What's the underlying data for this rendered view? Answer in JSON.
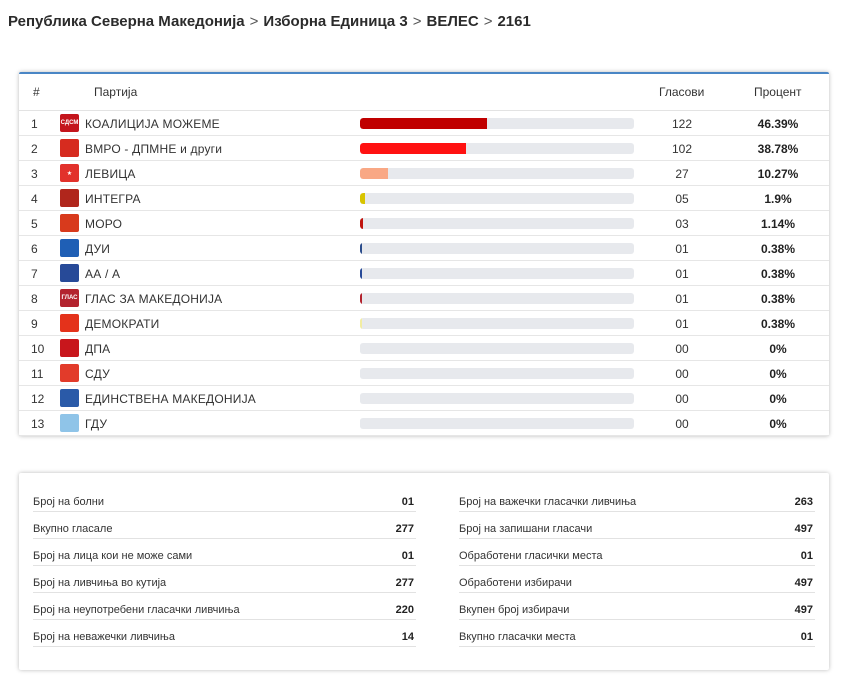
{
  "breadcrumb": {
    "items": [
      "Република Северна Македонија",
      "Изборна Единица 3",
      "ВЕЛЕС",
      "2161"
    ],
    "separator": ">"
  },
  "table": {
    "headers": {
      "index": "#",
      "party": "Партија",
      "votes": "Гласови",
      "percent": "Процент"
    },
    "rows": [
      {
        "num": "1",
        "party": "КОАЛИЦИЈА МОЖЕМЕ",
        "logo_text": "СДСМ",
        "logo_color": "#c4151c",
        "bar_color": "#c00000",
        "share": 0.4639,
        "votes": "122",
        "percent": "46.39%"
      },
      {
        "num": "2",
        "party": "ВМРО - ДПМНЕ и други",
        "logo_text": "",
        "logo_color": "#d62b1f",
        "bar_color": "#ff1111",
        "share": 0.3878,
        "votes": "102",
        "percent": "38.78%"
      },
      {
        "num": "3",
        "party": "ЛЕВИЦА",
        "logo_text": "★",
        "logo_color": "#e2312b",
        "bar_color": "#f9a885",
        "share": 0.1027,
        "votes": "27",
        "percent": "10.27%"
      },
      {
        "num": "4",
        "party": "ИНТЕГРА",
        "logo_text": "",
        "logo_color": "#b0261c",
        "bar_color": "#d8c400",
        "share": 0.019,
        "votes": "05",
        "percent": "1.9%"
      },
      {
        "num": "5",
        "party": "МОРО",
        "logo_text": "",
        "logo_color": "#d83a1c",
        "bar_color": "#c0140e",
        "share": 0.0114,
        "votes": "03",
        "percent": "1.14%"
      },
      {
        "num": "6",
        "party": "ДУИ",
        "logo_text": "",
        "logo_color": "#1f5fb5",
        "bar_color": "#2c4d8c",
        "share": 0.0038,
        "votes": "01",
        "percent": "0.38%"
      },
      {
        "num": "7",
        "party": "АА / А",
        "logo_text": "",
        "logo_color": "#274a98",
        "bar_color": "#274a98",
        "share": 0.0038,
        "votes": "01",
        "percent": "0.38%"
      },
      {
        "num": "8",
        "party": "ГЛАС ЗА МАКЕДОНИЈА",
        "logo_text": "ГЛАС",
        "logo_color": "#b3232e",
        "bar_color": "#b3232e",
        "share": 0.0038,
        "votes": "01",
        "percent": "0.38%"
      },
      {
        "num": "9",
        "party": "ДЕМОКРАТИ",
        "logo_text": "",
        "logo_color": "#e4321b",
        "bar_color": "#f2eda2",
        "share": 0.0038,
        "votes": "01",
        "percent": "0.38%"
      },
      {
        "num": "10",
        "party": "ДПА",
        "logo_text": "",
        "logo_color": "#c8161c",
        "bar_color": "#e7e9ed",
        "share": 0,
        "votes": "00",
        "percent": "0%"
      },
      {
        "num": "11",
        "party": "СДУ",
        "logo_text": "",
        "logo_color": "#e23b2a",
        "bar_color": "#e7e9ed",
        "share": 0,
        "votes": "00",
        "percent": "0%"
      },
      {
        "num": "12",
        "party": "ЕДИНСТВЕНА МАКЕДОНИЈА",
        "logo_text": "",
        "logo_color": "#2a5aa8",
        "bar_color": "#e7e9ed",
        "share": 0,
        "votes": "00",
        "percent": "0%"
      },
      {
        "num": "13",
        "party": "ГДУ",
        "logo_text": "",
        "logo_color": "#8fc4e8",
        "bar_color": "#e7e9ed",
        "share": 0,
        "votes": "00",
        "percent": "0%"
      }
    ]
  },
  "stats": {
    "left": [
      {
        "label": "Број на болни",
        "value": "01"
      },
      {
        "label": "Вкупно гласале",
        "value": "277"
      },
      {
        "label": "Број на лица кои не може сами",
        "value": "01"
      },
      {
        "label": "Број на ливчиња во кутија",
        "value": "277"
      },
      {
        "label": "Број на неупотребени гласачки ливчиња",
        "value": "220"
      },
      {
        "label": "Број на неважечки ливчиња",
        "value": "14"
      }
    ],
    "right": [
      {
        "label": "Број на важечки гласачки ливчиња",
        "value": "263"
      },
      {
        "label": "Број на запишани гласачи",
        "value": "497"
      },
      {
        "label": "Обработени гласички места",
        "value": "01"
      },
      {
        "label": "Обработени избирачи",
        "value": "497"
      },
      {
        "label": "Вкупен број избирачи",
        "value": "497"
      },
      {
        "label": "Вкупно гласачки места",
        "value": "01"
      }
    ]
  }
}
